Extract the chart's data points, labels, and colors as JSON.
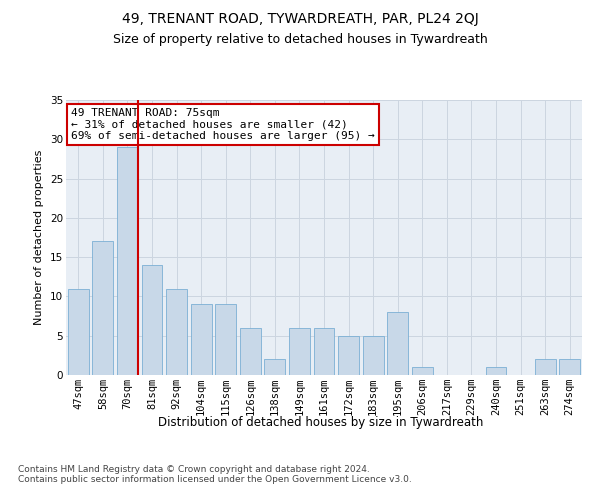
{
  "title": "49, TRENANT ROAD, TYWARDREATH, PAR, PL24 2QJ",
  "subtitle": "Size of property relative to detached houses in Tywardreath",
  "xlabel": "Distribution of detached houses by size in Tywardreath",
  "ylabel": "Number of detached properties",
  "categories": [
    "47sqm",
    "58sqm",
    "70sqm",
    "81sqm",
    "92sqm",
    "104sqm",
    "115sqm",
    "126sqm",
    "138sqm",
    "149sqm",
    "161sqm",
    "172sqm",
    "183sqm",
    "195sqm",
    "206sqm",
    "217sqm",
    "229sqm",
    "240sqm",
    "251sqm",
    "263sqm",
    "274sqm"
  ],
  "values": [
    11,
    17,
    29,
    14,
    11,
    9,
    9,
    6,
    2,
    6,
    6,
    5,
    5,
    8,
    1,
    0,
    0,
    1,
    0,
    2,
    2
  ],
  "bar_color": "#c8d8e8",
  "bar_edge_color": "#7bafd4",
  "vline_color": "#cc0000",
  "annotation_text": "49 TRENANT ROAD: 75sqm\n← 31% of detached houses are smaller (42)\n69% of semi-detached houses are larger (95) →",
  "annotation_box_color": "#ffffff",
  "annotation_box_edge_color": "#cc0000",
  "ylim": [
    0,
    35
  ],
  "yticks": [
    0,
    5,
    10,
    15,
    20,
    25,
    30,
    35
  ],
  "grid_color": "#ccd5e0",
  "background_color": "#e8eef5",
  "footer_text": "Contains HM Land Registry data © Crown copyright and database right 2024.\nContains public sector information licensed under the Open Government Licence v3.0.",
  "title_fontsize": 10,
  "subtitle_fontsize": 9,
  "xlabel_fontsize": 8.5,
  "ylabel_fontsize": 8,
  "tick_fontsize": 7.5,
  "annotation_fontsize": 8,
  "footer_fontsize": 6.5
}
